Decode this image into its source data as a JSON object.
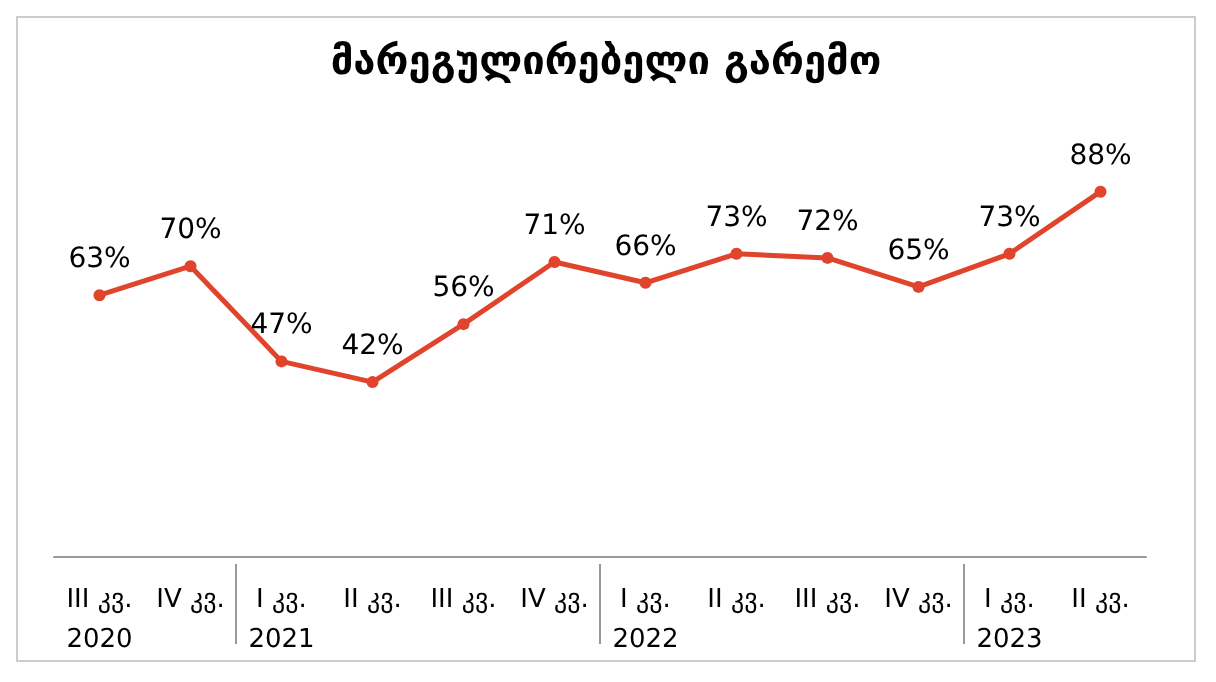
{
  "chart_data": {
    "type": "line",
    "title": "მარეგულირებელი გარემო",
    "categories": [
      "III კვ.\n2020",
      "IV კვ.",
      "I კვ.\n2021",
      "II კვ.",
      "III კვ.",
      "IV კვ.",
      "I კვ.\n2022",
      "II კვ.",
      "III კვ.",
      "IV კვ.",
      "I კვ.\n2023",
      "II კვ."
    ],
    "values": [
      63,
      70,
      47,
      42,
      56,
      71,
      66,
      73,
      72,
      65,
      73,
      88
    ],
    "value_labels": [
      "63%",
      "70%",
      "47%",
      "42%",
      "56%",
      "71%",
      "66%",
      "73%",
      "72%",
      "65%",
      "73%",
      "88%"
    ],
    "color": "#e0442c",
    "marker": "circle",
    "line_style": "solid",
    "grid": false
  }
}
